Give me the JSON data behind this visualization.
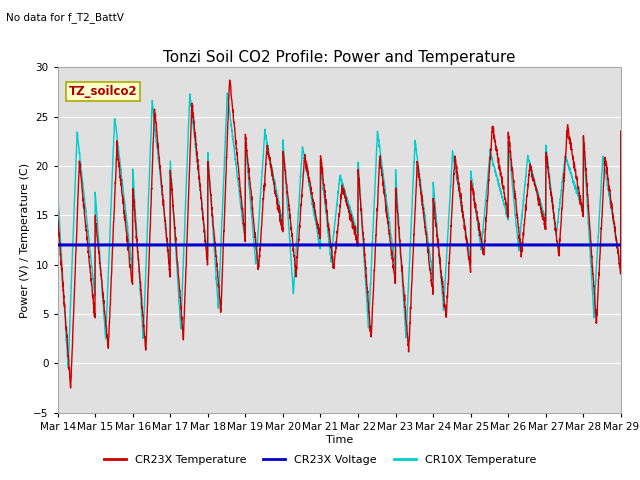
{
  "title": "Tonzi Soil CO2 Profile: Power and Temperature",
  "subtitle": "No data for f_T2_BattV",
  "xlabel": "Time",
  "ylabel": "Power (V) / Temperature (C)",
  "ylim": [
    -5,
    30
  ],
  "yticks": [
    -5,
    0,
    5,
    10,
    15,
    20,
    25,
    30
  ],
  "xtick_labels": [
    "Mar 14",
    "Mar 15",
    "Mar 16",
    "Mar 17",
    "Mar 18",
    "Mar 19",
    "Mar 20",
    "Mar 21",
    "Mar 22",
    "Mar 23",
    "Mar 24",
    "Mar 25",
    "Mar 26",
    "Mar 27",
    "Mar 28",
    "Mar 29"
  ],
  "voltage_value": 12.0,
  "fig_bg_color": "#ffffff",
  "plot_bg_color": "#e0e0e0",
  "legend_label_text": "TZ_soilco2",
  "legend_text_color": "#aa0000",
  "legend_box_color": "#ffffcc",
  "legend_box_edge": "#aaaa00",
  "cr23x_color": "#cc0000",
  "cr10x_color": "#00cccc",
  "voltage_color": "#0000cc",
  "grid_color": "#ffffff",
  "title_fontsize": 11,
  "axis_label_fontsize": 8,
  "tick_fontsize": 7.5
}
